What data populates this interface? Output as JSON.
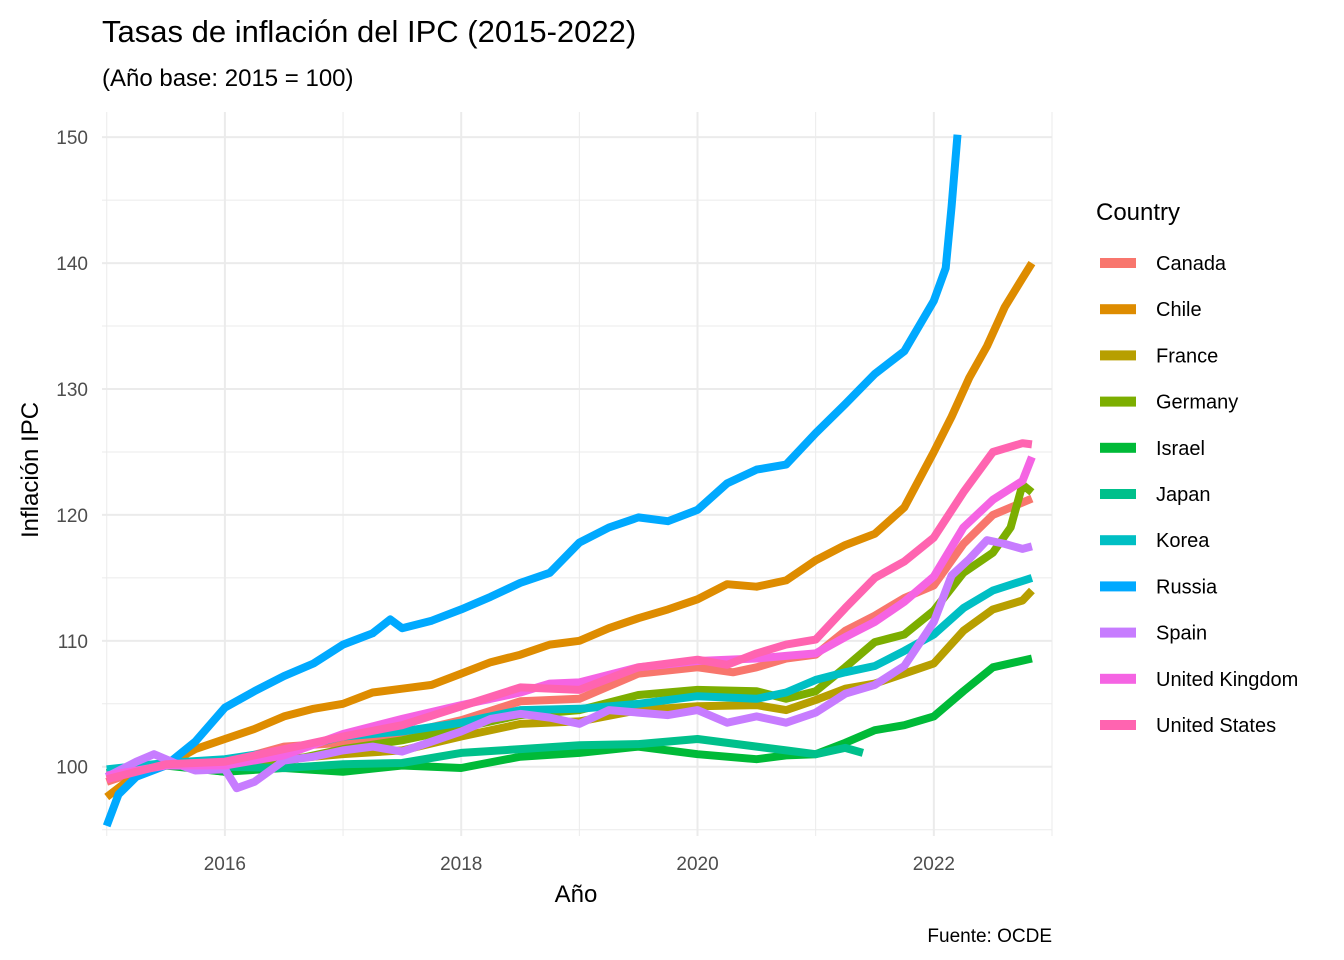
{
  "chart_data": {
    "type": "line",
    "title": "Tasas de inflación del IPC (2015-2022)",
    "subtitle": "(Año base: 2015 = 100)",
    "xlabel": "Año",
    "ylabel": "Inflación IPC",
    "caption": "Fuente: OCDE",
    "legend_title": "Country",
    "legend_position": "right",
    "grid": true,
    "xlim": [
      2014.96,
      2023.0
    ],
    "ylim": [
      94.5,
      152.0
    ],
    "x_ticks": [
      2016,
      2018,
      2020,
      2022
    ],
    "x_tick_labels": [
      "2016",
      "2018",
      "2020",
      "2022"
    ],
    "y_ticks": [
      100,
      110,
      120,
      130,
      140,
      150
    ],
    "y_tick_labels": [
      "100",
      "110",
      "120",
      "130",
      "140",
      "150"
    ],
    "series": [
      {
        "name": "Canada",
        "color": "#F8766D",
        "points": [
          [
            2015.0,
            98.8
          ],
          [
            2015.5,
            100.4
          ],
          [
            2016.0,
            100.3
          ],
          [
            2016.5,
            101.6
          ],
          [
            2017.0,
            101.9
          ],
          [
            2017.5,
            102.6
          ],
          [
            2018.0,
            103.7
          ],
          [
            2018.5,
            105.2
          ],
          [
            2019.0,
            105.4
          ],
          [
            2019.5,
            107.4
          ],
          [
            2020.0,
            107.9
          ],
          [
            2020.3,
            107.5
          ],
          [
            2020.5,
            107.9
          ],
          [
            2020.75,
            108.6
          ],
          [
            2021.0,
            108.9
          ],
          [
            2021.25,
            110.8
          ],
          [
            2021.5,
            112.0
          ],
          [
            2021.75,
            113.4
          ],
          [
            2022.0,
            114.4
          ],
          [
            2022.25,
            117.7
          ],
          [
            2022.5,
            120.0
          ],
          [
            2022.83,
            121.3
          ]
        ]
      },
      {
        "name": "Chile",
        "color": "#DE8C00",
        "points": [
          [
            2015.0,
            97.6
          ],
          [
            2015.25,
            99.4
          ],
          [
            2015.5,
            100.1
          ],
          [
            2015.75,
            101.4
          ],
          [
            2016.0,
            102.2
          ],
          [
            2016.25,
            103.0
          ],
          [
            2016.5,
            104.0
          ],
          [
            2016.75,
            104.6
          ],
          [
            2017.0,
            105.0
          ],
          [
            2017.25,
            105.9
          ],
          [
            2017.5,
            106.2
          ],
          [
            2017.75,
            106.5
          ],
          [
            2018.0,
            107.4
          ],
          [
            2018.25,
            108.3
          ],
          [
            2018.5,
            108.9
          ],
          [
            2018.75,
            109.7
          ],
          [
            2019.0,
            110.0
          ],
          [
            2019.25,
            111.0
          ],
          [
            2019.5,
            111.8
          ],
          [
            2019.75,
            112.5
          ],
          [
            2020.0,
            113.3
          ],
          [
            2020.25,
            114.5
          ],
          [
            2020.5,
            114.3
          ],
          [
            2020.75,
            114.8
          ],
          [
            2021.0,
            116.4
          ],
          [
            2021.25,
            117.6
          ],
          [
            2021.5,
            118.5
          ],
          [
            2021.75,
            120.6
          ],
          [
            2022.0,
            125.0
          ],
          [
            2022.15,
            127.8
          ],
          [
            2022.3,
            130.9
          ],
          [
            2022.45,
            133.4
          ],
          [
            2022.6,
            136.5
          ],
          [
            2022.75,
            138.8
          ],
          [
            2022.83,
            140.0
          ]
        ]
      },
      {
        "name": "France",
        "color": "#B79F00",
        "points": [
          [
            2015.0,
            99.5
          ],
          [
            2015.5,
            100.2
          ],
          [
            2016.0,
            99.9
          ],
          [
            2016.5,
            100.6
          ],
          [
            2017.0,
            101.0
          ],
          [
            2017.5,
            101.3
          ],
          [
            2018.0,
            102.4
          ],
          [
            2018.5,
            103.4
          ],
          [
            2019.0,
            103.6
          ],
          [
            2019.5,
            104.5
          ],
          [
            2020.0,
            104.8
          ],
          [
            2020.5,
            104.9
          ],
          [
            2020.75,
            104.5
          ],
          [
            2021.0,
            105.3
          ],
          [
            2021.25,
            106.2
          ],
          [
            2021.5,
            106.6
          ],
          [
            2021.75,
            107.4
          ],
          [
            2022.0,
            108.2
          ],
          [
            2022.25,
            110.8
          ],
          [
            2022.5,
            112.5
          ],
          [
            2022.75,
            113.2
          ],
          [
            2022.83,
            114.0
          ]
        ]
      },
      {
        "name": "Germany",
        "color": "#7CAE00",
        "points": [
          [
            2015.0,
            99.3
          ],
          [
            2015.5,
            100.2
          ],
          [
            2016.0,
            99.6
          ],
          [
            2016.5,
            100.4
          ],
          [
            2017.0,
            101.4
          ],
          [
            2017.5,
            102.1
          ],
          [
            2018.0,
            103.1
          ],
          [
            2018.5,
            104.1
          ],
          [
            2019.0,
            104.5
          ],
          [
            2019.5,
            105.7
          ],
          [
            2020.0,
            106.1
          ],
          [
            2020.5,
            106.0
          ],
          [
            2020.75,
            105.4
          ],
          [
            2021.0,
            106.0
          ],
          [
            2021.25,
            107.9
          ],
          [
            2021.5,
            109.9
          ],
          [
            2021.75,
            110.5
          ],
          [
            2022.0,
            112.4
          ],
          [
            2022.25,
            115.4
          ],
          [
            2022.5,
            117.0
          ],
          [
            2022.65,
            119.0
          ],
          [
            2022.75,
            122.4
          ],
          [
            2022.83,
            121.8
          ]
        ]
      },
      {
        "name": "Israel",
        "color": "#00BA38",
        "points": [
          [
            2015.0,
            99.2
          ],
          [
            2015.5,
            100.1
          ],
          [
            2016.0,
            99.6
          ],
          [
            2016.5,
            99.9
          ],
          [
            2017.0,
            99.6
          ],
          [
            2017.5,
            100.1
          ],
          [
            2018.0,
            99.9
          ],
          [
            2018.5,
            100.8
          ],
          [
            2019.0,
            101.1
          ],
          [
            2019.5,
            101.6
          ],
          [
            2020.0,
            101.0
          ],
          [
            2020.5,
            100.6
          ],
          [
            2020.75,
            100.9
          ],
          [
            2021.0,
            101.0
          ],
          [
            2021.25,
            101.9
          ],
          [
            2021.5,
            102.9
          ],
          [
            2021.75,
            103.3
          ],
          [
            2022.0,
            104.0
          ],
          [
            2022.25,
            106.0
          ],
          [
            2022.5,
            107.9
          ],
          [
            2022.83,
            108.6
          ]
        ]
      },
      {
        "name": "Japan",
        "color": "#00C08B",
        "points": [
          [
            2015.0,
            99.5
          ],
          [
            2015.5,
            100.1
          ],
          [
            2016.0,
            100.0
          ],
          [
            2016.5,
            99.9
          ],
          [
            2017.0,
            100.2
          ],
          [
            2017.5,
            100.3
          ],
          [
            2018.0,
            101.1
          ],
          [
            2018.5,
            101.4
          ],
          [
            2019.0,
            101.7
          ],
          [
            2019.5,
            101.8
          ],
          [
            2020.0,
            102.2
          ],
          [
            2020.5,
            101.6
          ],
          [
            2020.75,
            101.3
          ],
          [
            2021.0,
            101.0
          ],
          [
            2021.25,
            101.5
          ],
          [
            2021.4,
            101.1
          ]
        ]
      },
      {
        "name": "Korea",
        "color": "#00BFC4",
        "points": [
          [
            2015.0,
            99.8
          ],
          [
            2015.5,
            100.3
          ],
          [
            2016.0,
            100.6
          ],
          [
            2016.5,
            101.3
          ],
          [
            2017.0,
            102.4
          ],
          [
            2017.5,
            102.8
          ],
          [
            2018.0,
            103.5
          ],
          [
            2018.5,
            104.5
          ],
          [
            2019.0,
            104.6
          ],
          [
            2019.5,
            105.0
          ],
          [
            2020.0,
            105.6
          ],
          [
            2020.5,
            105.4
          ],
          [
            2020.75,
            105.9
          ],
          [
            2021.0,
            106.9
          ],
          [
            2021.25,
            107.5
          ],
          [
            2021.5,
            108.0
          ],
          [
            2021.75,
            109.2
          ],
          [
            2022.0,
            110.5
          ],
          [
            2022.25,
            112.6
          ],
          [
            2022.5,
            114.0
          ],
          [
            2022.83,
            115.0
          ]
        ]
      },
      {
        "name": "Russia",
        "color": "#00A9FF",
        "points": [
          [
            2015.0,
            95.3
          ],
          [
            2015.1,
            97.8
          ],
          [
            2015.25,
            99.2
          ],
          [
            2015.5,
            100.1
          ],
          [
            2015.75,
            102.0
          ],
          [
            2016.0,
            104.7
          ],
          [
            2016.25,
            106.0
          ],
          [
            2016.5,
            107.2
          ],
          [
            2016.75,
            108.2
          ],
          [
            2017.0,
            109.7
          ],
          [
            2017.25,
            110.6
          ],
          [
            2017.4,
            111.7
          ],
          [
            2017.5,
            111.0
          ],
          [
            2017.75,
            111.6
          ],
          [
            2018.0,
            112.5
          ],
          [
            2018.25,
            113.5
          ],
          [
            2018.5,
            114.6
          ],
          [
            2018.75,
            115.4
          ],
          [
            2019.0,
            117.8
          ],
          [
            2019.25,
            119.0
          ],
          [
            2019.5,
            119.8
          ],
          [
            2019.75,
            119.5
          ],
          [
            2020.0,
            120.4
          ],
          [
            2020.25,
            122.5
          ],
          [
            2020.5,
            123.6
          ],
          [
            2020.75,
            124.0
          ],
          [
            2021.0,
            126.5
          ],
          [
            2021.25,
            128.8
          ],
          [
            2021.5,
            131.2
          ],
          [
            2021.75,
            133.0
          ],
          [
            2022.0,
            137.0
          ],
          [
            2022.1,
            139.6
          ],
          [
            2022.15,
            144.5
          ],
          [
            2022.2,
            150.2
          ]
        ]
      },
      {
        "name": "Spain",
        "color": "#C77CFF",
        "points": [
          [
            2015.0,
            99.2
          ],
          [
            2015.25,
            100.4
          ],
          [
            2015.4,
            101.0
          ],
          [
            2015.6,
            100.2
          ],
          [
            2015.75,
            99.7
          ],
          [
            2016.0,
            99.8
          ],
          [
            2016.1,
            98.3
          ],
          [
            2016.25,
            98.8
          ],
          [
            2016.5,
            100.5
          ],
          [
            2016.75,
            100.8
          ],
          [
            2017.0,
            101.3
          ],
          [
            2017.25,
            101.6
          ],
          [
            2017.5,
            101.2
          ],
          [
            2017.75,
            102.0
          ],
          [
            2018.0,
            102.8
          ],
          [
            2018.25,
            103.8
          ],
          [
            2018.5,
            104.2
          ],
          [
            2018.75,
            103.9
          ],
          [
            2019.0,
            103.4
          ],
          [
            2019.25,
            104.5
          ],
          [
            2019.5,
            104.3
          ],
          [
            2019.75,
            104.1
          ],
          [
            2020.0,
            104.5
          ],
          [
            2020.25,
            103.5
          ],
          [
            2020.5,
            104.0
          ],
          [
            2020.75,
            103.5
          ],
          [
            2021.0,
            104.3
          ],
          [
            2021.25,
            105.8
          ],
          [
            2021.5,
            106.5
          ],
          [
            2021.75,
            108.0
          ],
          [
            2022.0,
            111.5
          ],
          [
            2022.15,
            115.2
          ],
          [
            2022.3,
            116.5
          ],
          [
            2022.45,
            118.0
          ],
          [
            2022.6,
            117.7
          ],
          [
            2022.75,
            117.3
          ],
          [
            2022.83,
            117.5
          ]
        ]
      },
      {
        "name": "United Kingdom",
        "color": "#F564E3",
        "points": [
          [
            2015.0,
            99.3
          ],
          [
            2015.5,
            100.1
          ],
          [
            2016.0,
            100.1
          ],
          [
            2016.5,
            100.9
          ],
          [
            2017.0,
            102.6
          ],
          [
            2017.5,
            103.8
          ],
          [
            2018.0,
            104.9
          ],
          [
            2018.5,
            105.9
          ],
          [
            2018.75,
            106.6
          ],
          [
            2019.0,
            106.7
          ],
          [
            2019.5,
            107.9
          ],
          [
            2020.0,
            108.4
          ],
          [
            2020.5,
            108.6
          ],
          [
            2020.75,
            108.8
          ],
          [
            2021.0,
            109.0
          ],
          [
            2021.25,
            110.3
          ],
          [
            2021.5,
            111.5
          ],
          [
            2021.75,
            113.1
          ],
          [
            2022.0,
            115.1
          ],
          [
            2022.25,
            119.0
          ],
          [
            2022.5,
            121.2
          ],
          [
            2022.75,
            122.7
          ],
          [
            2022.83,
            124.6
          ]
        ]
      },
      {
        "name": "United States",
        "color": "#FF64B0",
        "points": [
          [
            2015.0,
            99.0
          ],
          [
            2015.5,
            100.2
          ],
          [
            2016.0,
            100.4
          ],
          [
            2016.5,
            101.4
          ],
          [
            2017.0,
            102.4
          ],
          [
            2017.5,
            103.3
          ],
          [
            2018.0,
            104.8
          ],
          [
            2018.5,
            106.3
          ],
          [
            2019.0,
            106.1
          ],
          [
            2019.5,
            107.9
          ],
          [
            2020.0,
            108.5
          ],
          [
            2020.25,
            108.1
          ],
          [
            2020.5,
            109.0
          ],
          [
            2020.75,
            109.7
          ],
          [
            2021.0,
            110.1
          ],
          [
            2021.25,
            112.6
          ],
          [
            2021.5,
            115.0
          ],
          [
            2021.75,
            116.3
          ],
          [
            2022.0,
            118.2
          ],
          [
            2022.25,
            121.8
          ],
          [
            2022.5,
            125.0
          ],
          [
            2022.75,
            125.7
          ],
          [
            2022.83,
            125.6
          ]
        ]
      }
    ]
  }
}
